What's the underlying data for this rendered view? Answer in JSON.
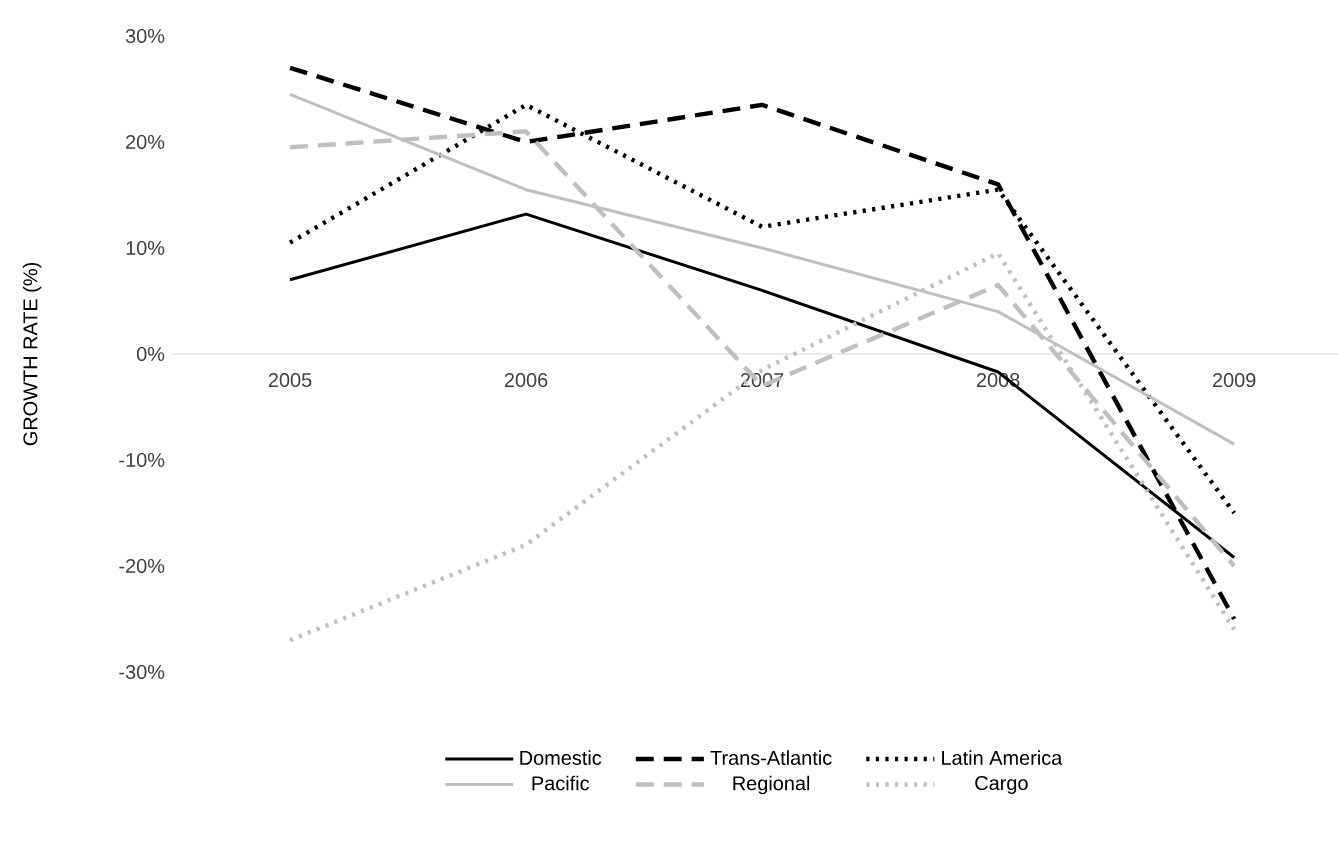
{
  "chart_data": {
    "type": "line",
    "ylabel": "GROWTH RATE (%)",
    "categories": [
      "2005",
      "2006",
      "2007",
      "2008",
      "2009"
    ],
    "series": [
      {
        "name": "Domestic",
        "color": "#000000",
        "line_style": "solid",
        "values": [
          7,
          13.2,
          6,
          -1.7,
          -19.2
        ]
      },
      {
        "name": "Trans-Atlantic",
        "color": "#000000",
        "line_style": "dashed",
        "values": [
          27,
          20,
          23.5,
          16,
          -25
        ]
      },
      {
        "name": "Latin America",
        "color": "#000000",
        "line_style": "dotted",
        "values": [
          10.5,
          23.5,
          12,
          15.5,
          -15
        ]
      },
      {
        "name": "Pacific",
        "color": "#bfbfbf",
        "line_style": "solid",
        "values": [
          24.5,
          15.5,
          10,
          4,
          -8.5
        ]
      },
      {
        "name": "Regional",
        "color": "#bfbfbf",
        "line_style": "dashed",
        "values": [
          19.5,
          21,
          -3,
          6.5,
          -20
        ]
      },
      {
        "name": "Cargo",
        "color": "#bfbfbf",
        "line_style": "dotted",
        "values": [
          -27,
          -18,
          -1.5,
          9.5,
          -26
        ]
      }
    ],
    "ylim": [
      -30,
      30
    ],
    "yticks": [
      {
        "value": -30,
        "label": "-30%"
      },
      {
        "value": -20,
        "label": "-20%"
      },
      {
        "value": -10,
        "label": "-10%"
      },
      {
        "value": 0,
        "label": "0%"
      },
      {
        "value": 10,
        "label": "10%"
      },
      {
        "value": 20,
        "label": "20%"
      },
      {
        "value": 30,
        "label": "30%"
      }
    ],
    "legend": "bottom"
  }
}
